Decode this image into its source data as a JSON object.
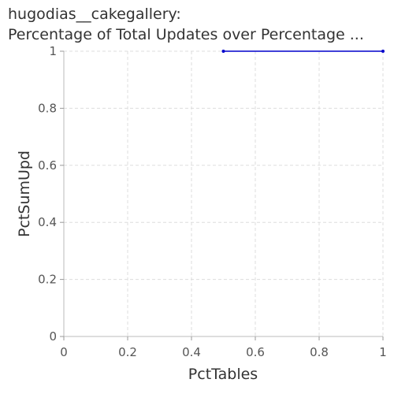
{
  "chart_data": {
    "type": "line",
    "title_lines": [
      "hugodias__cakegallery:",
      "Percentage of Total Updates over Percentage ..."
    ],
    "xlabel": "PctTables",
    "ylabel": "PctSumUpd",
    "xlim": [
      0,
      1
    ],
    "ylim": [
      0,
      1
    ],
    "x_ticks": [
      "0",
      "0.2",
      "0.4",
      "0.6",
      "0.8",
      "1"
    ],
    "y_ticks": [
      "0",
      "0.2",
      "0.4",
      "0.6",
      "0.8",
      "1"
    ],
    "grid": true,
    "series": [
      {
        "x": [
          0.5,
          1.0
        ],
        "y": [
          1.0,
          1.0
        ],
        "color": "#0000cc"
      }
    ]
  }
}
